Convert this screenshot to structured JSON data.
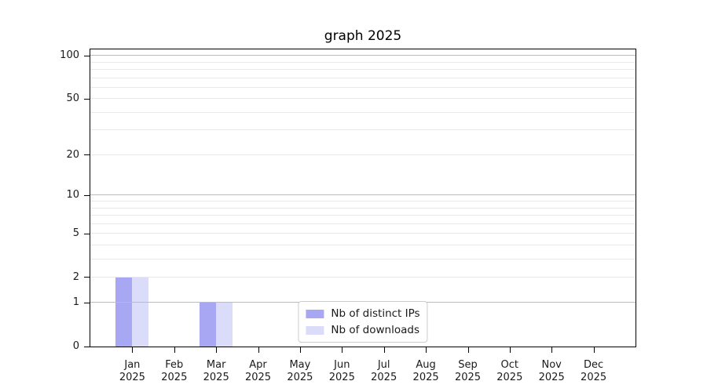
{
  "chart_data": {
    "type": "bar",
    "title": "graph 2025",
    "x": {
      "months": [
        "Jan",
        "Feb",
        "Mar",
        "Apr",
        "May",
        "Jun",
        "Jul",
        "Aug",
        "Sep",
        "Oct",
        "Nov",
        "Dec"
      ],
      "year": "2025"
    },
    "series": [
      {
        "name": "Nb of distinct IPs",
        "color": "#a7a7f4",
        "values": [
          2,
          0,
          1,
          0,
          0,
          0,
          0,
          0,
          0,
          0,
          0,
          0
        ]
      },
      {
        "name": "Nb of downloads",
        "color": "#dbdbfa",
        "values": [
          2,
          0,
          1,
          0,
          0,
          0,
          0,
          0,
          0,
          0,
          0,
          0
        ]
      }
    ],
    "y_axis": {
      "scale": "log10(1+x)",
      "tick_labels": [
        0,
        1,
        2,
        5,
        10,
        20,
        50,
        100
      ],
      "max": 111,
      "major_gridlines": [
        1,
        10,
        100
      ],
      "minor_gridlines": [
        2,
        3,
        4,
        5,
        6,
        7,
        8,
        9,
        20,
        30,
        40,
        50,
        60,
        70,
        80,
        90
      ]
    },
    "legend": {
      "location": "lower center"
    },
    "colors": {
      "major_grid": "#bbbbbb",
      "minor_grid": "#e8e8e8",
      "spine": "#000000",
      "text": "#1a1a1a",
      "background": "#ffffff"
    }
  }
}
